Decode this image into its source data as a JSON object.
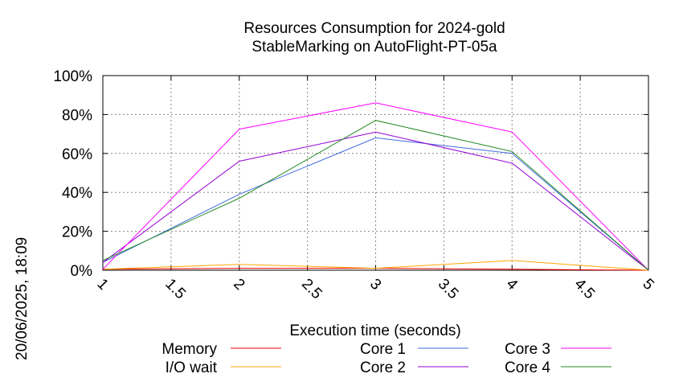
{
  "chart_data": {
    "type": "line",
    "title_line1": "Resources Consumption for 2024-gold",
    "title_line2": "StableMarking on AutoFlight-PT-05a",
    "xlabel": "Execution time (seconds)",
    "ylabel": "",
    "timestamp": "20/06/2025, 18:09",
    "xlim": [
      1,
      5
    ],
    "ylim": [
      0,
      100
    ],
    "x_ticks": [
      "1",
      "1.5",
      "2",
      "2.5",
      "3",
      "3.5",
      "4",
      "4.5",
      "5"
    ],
    "y_ticks": [
      "0%",
      "20%",
      "40%",
      "60%",
      "80%",
      "100%"
    ],
    "grid": true,
    "legend_position": "bottom",
    "x": [
      1,
      2,
      3,
      4,
      5
    ],
    "series": [
      {
        "name": "Memory",
        "color": "#ff0000",
        "values": [
          0.5,
          1,
          1,
          0.5,
          0
        ]
      },
      {
        "name": "I/O wait",
        "color": "#ffa500",
        "values": [
          0.5,
          3,
          1,
          5,
          0
        ]
      },
      {
        "name": "Core 1",
        "color": "#4169e1",
        "values": [
          4,
          39,
          68,
          60,
          0
        ]
      },
      {
        "name": "Core 2",
        "color": "#9400d3",
        "values": [
          4,
          56,
          71,
          55,
          0
        ]
      },
      {
        "name": "Core 3",
        "color": "#ff00ff",
        "values": [
          0.5,
          72.5,
          86,
          71,
          0
        ]
      },
      {
        "name": "Core 4",
        "color": "#228b22",
        "values": [
          5,
          37,
          77,
          61,
          0
        ]
      }
    ]
  }
}
